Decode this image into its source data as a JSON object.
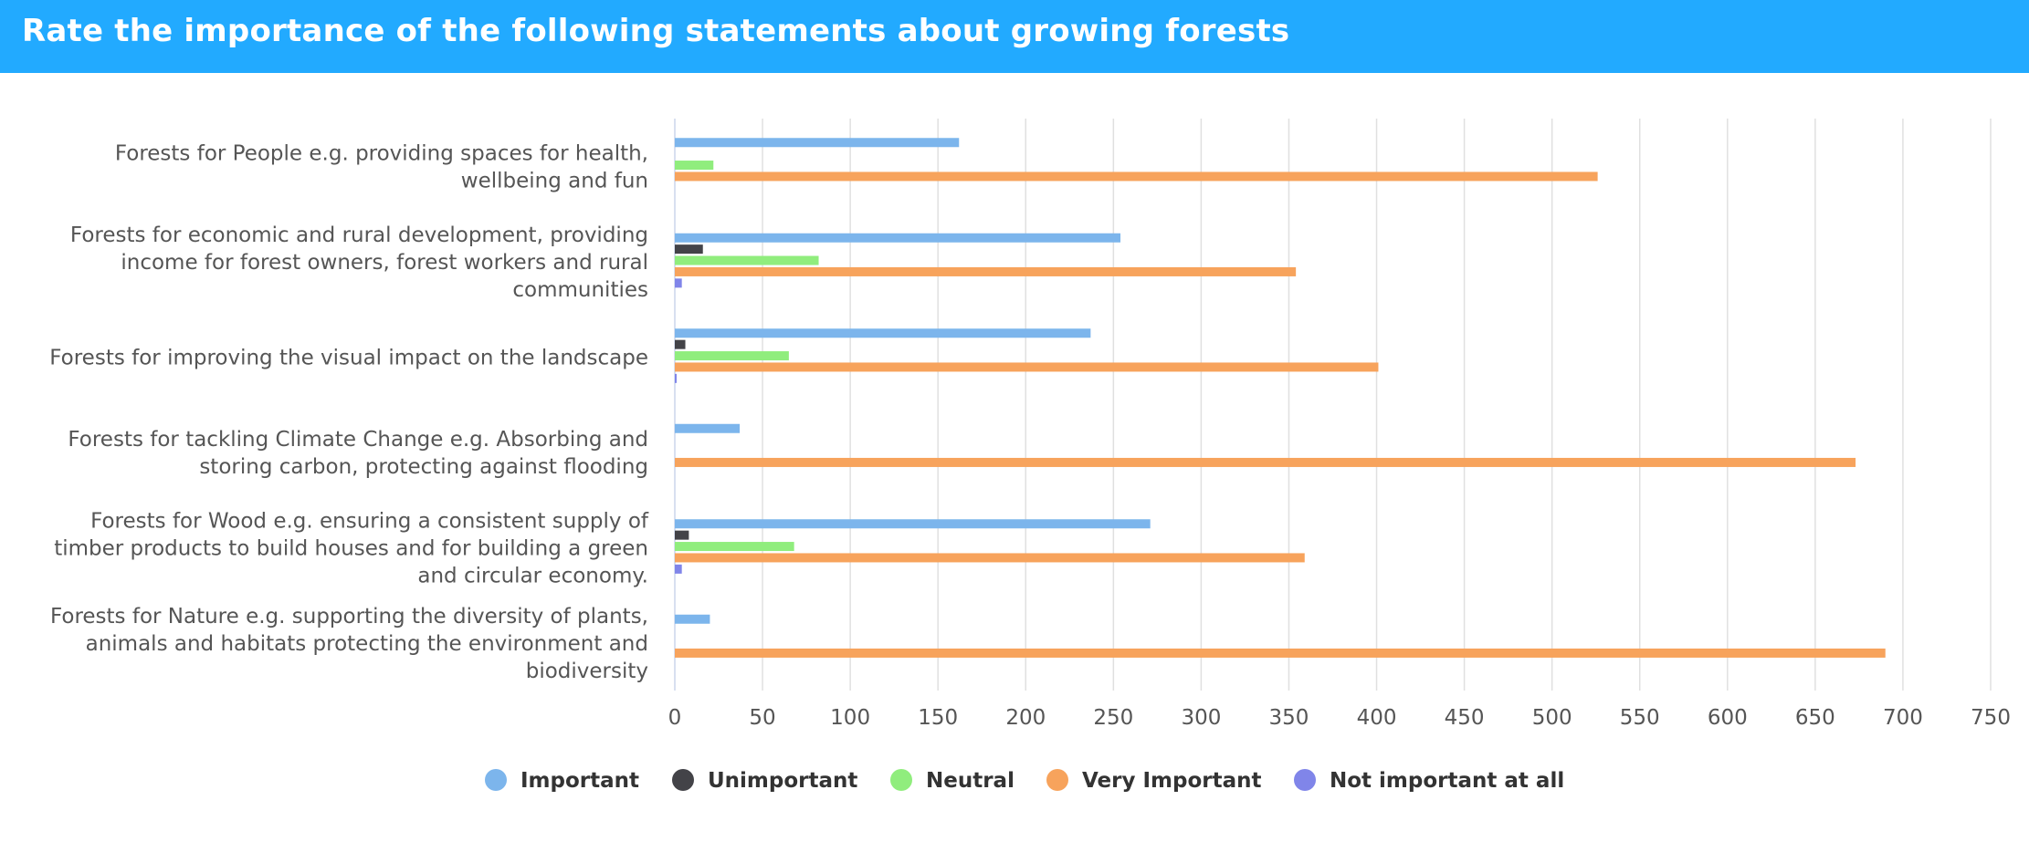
{
  "header": {
    "title": "Rate the importance of the following statements about growing forests"
  },
  "colors": {
    "header_background": "#22aaff",
    "header_text": "#ffffff",
    "grid": "#e0e0e0"
  },
  "chart_data": {
    "type": "bar",
    "orientation": "horizontal",
    "title": "Rate the importance of the following statements about growing forests",
    "categories": [
      [
        "Forests for People e.g. providing spaces for health,",
        "wellbeing and fun"
      ],
      [
        "Forests for economic and rural development, providing",
        "income for forest owners, forest workers and rural",
        "communities"
      ],
      [
        "Forests for improving the visual impact on the landscape"
      ],
      [
        "Forests for tackling Climate Change e.g. Absorbing and",
        "storing carbon, protecting against flooding"
      ],
      [
        "Forests for Wood e.g. ensuring a consistent supply of",
        "timber products to build houses and for building a green",
        "and circular economy."
      ],
      [
        "Forests for Nature e.g. supporting the diversity of plants,",
        "animals and habitats protecting the environment and",
        "biodiversity"
      ]
    ],
    "series": [
      {
        "name": "Important",
        "color": "#7cb5ec",
        "values": [
          162,
          254,
          237,
          37,
          271,
          20
        ]
      },
      {
        "name": "Unimportant",
        "color": "#434348",
        "values": [
          0,
          16,
          6,
          0,
          8,
          0
        ]
      },
      {
        "name": "Neutral",
        "color": "#90ed7d",
        "values": [
          22,
          82,
          65,
          0,
          68,
          0
        ]
      },
      {
        "name": "Very Important",
        "color": "#f7a35c",
        "values": [
          526,
          354,
          401,
          673,
          359,
          690
        ]
      },
      {
        "name": "Not important at all",
        "color": "#8085e9",
        "values": [
          0,
          4,
          1,
          0,
          4,
          0
        ]
      }
    ],
    "xlim": [
      0,
      750
    ],
    "xticks": [
      0,
      50,
      100,
      150,
      200,
      250,
      300,
      350,
      400,
      450,
      500,
      550,
      600,
      650,
      700,
      750
    ],
    "grid": true,
    "legend": "bottom-center"
  }
}
